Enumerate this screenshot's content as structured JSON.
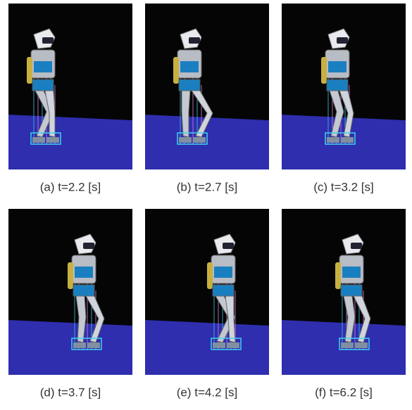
{
  "panels": [
    {
      "caption": "(a) t=2.2 [s]"
    },
    {
      "caption": "(b) t=2.7 [s]"
    },
    {
      "caption": "(c) t=3.2 [s]"
    },
    {
      "caption": "(d) t=3.7 [s]"
    },
    {
      "caption": "(e) t=4.2 [s]"
    },
    {
      "caption": "(f) t=6.2 [s]"
    }
  ]
}
